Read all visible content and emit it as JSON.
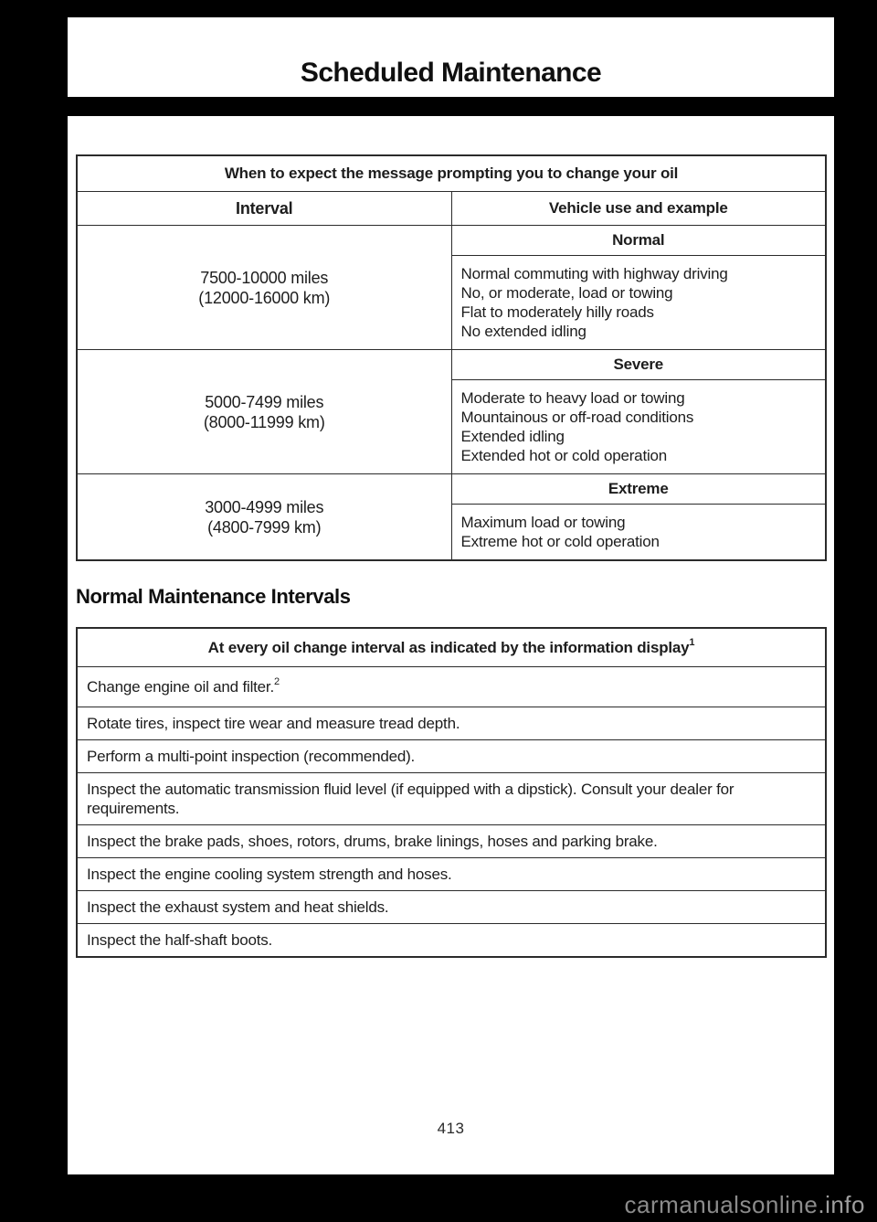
{
  "colors": {
    "page_background": "#000000",
    "paper": "#ffffff",
    "text": "#1d1d1d",
    "table_border": "#2b2b2b",
    "watermark_gray": "#8b8b8b"
  },
  "header": {
    "title": "Scheduled Maintenance"
  },
  "oil_change_table": {
    "title": "When to expect the message prompting you to change your oil",
    "columns": {
      "interval": "Interval",
      "usage": "Vehicle use and example"
    },
    "rows": [
      {
        "interval_miles": "7500-10000 miles",
        "interval_km": "(12000-16000 km)",
        "category": "Normal",
        "items": [
          "Normal commuting with highway driving",
          "No, or moderate, load or towing",
          "Flat to moderately hilly roads",
          "No extended idling"
        ]
      },
      {
        "interval_miles": "5000-7499 miles",
        "interval_km": "(8000-11999 km)",
        "category": "Severe",
        "items": [
          "Moderate to heavy load or towing",
          "Mountainous or off-road conditions",
          "Extended idling",
          "Extended hot or cold operation"
        ]
      },
      {
        "interval_miles": "3000-4999 miles",
        "interval_km": "(4800-7999 km)",
        "category": "Extreme",
        "items": [
          "Maximum load or towing",
          "Extreme hot or cold operation"
        ]
      }
    ]
  },
  "normal_maintenance": {
    "heading": "Normal Maintenance Intervals",
    "table": {
      "title": "At every oil change interval as indicated by the information display",
      "title_superscript": "1",
      "rows": [
        {
          "text": "Change engine oil and filter.",
          "superscript": "2"
        },
        {
          "text": "Rotate tires, inspect tire wear and measure tread depth."
        },
        {
          "text": "Perform a multi-point inspection (recommended)."
        },
        {
          "text": "Inspect the automatic transmission fluid level (if equipped with a dipstick). Consult your dealer for requirements."
        },
        {
          "text": "Inspect the brake pads, shoes, rotors, drums, brake linings, hoses and parking brake."
        },
        {
          "text": "Inspect the engine cooling system strength and hoses."
        },
        {
          "text": "Inspect the exhaust system and heat shields."
        },
        {
          "text": "Inspect the half-shaft boots."
        }
      ]
    }
  },
  "footer": {
    "page_number": "413",
    "watermark_main": "carmanualsonline",
    "watermark_suffix": ".info"
  }
}
